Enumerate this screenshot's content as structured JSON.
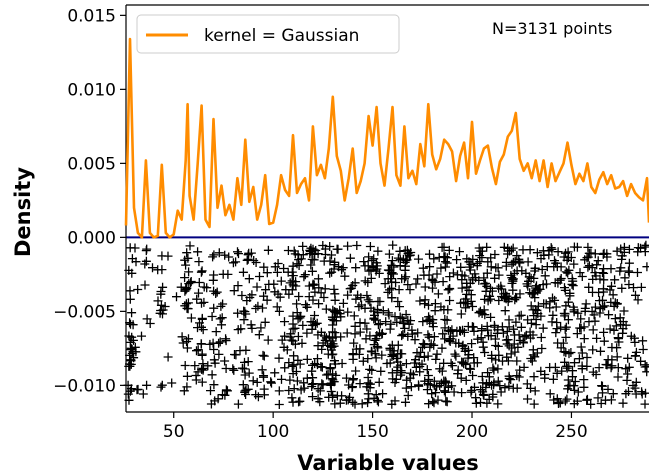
{
  "chart_data": {
    "type": "line",
    "title": "",
    "xlabel": "Variable values",
    "ylabel": "Density",
    "xlim": [
      26,
      289
    ],
    "ylim": [
      -0.0118,
      0.0157
    ],
    "xticks": [
      50,
      100,
      150,
      200,
      250
    ],
    "yticks": [
      -0.01,
      -0.005,
      0.0,
      0.005,
      0.01,
      0.015
    ],
    "xtick_labels": [
      "50",
      "100",
      "150",
      "200",
      "250"
    ],
    "ytick_labels": [
      "−0.010",
      "−0.005",
      "0.000",
      "0.005",
      "0.010",
      "0.015"
    ],
    "grid": false,
    "legend_position": "top-left",
    "annotation": "N=3131 points",
    "series": [
      {
        "name": "kernel = Gaussian",
        "color": "#ff8c00",
        "x": [
          26,
          28,
          30,
          32,
          34,
          36,
          38,
          40,
          42,
          44,
          46,
          48,
          50,
          52,
          54,
          56,
          57,
          58,
          60,
          62,
          64,
          66,
          68,
          70,
          72,
          74,
          76,
          78,
          80,
          82,
          84,
          86,
          88,
          90,
          92,
          94,
          96,
          98,
          100,
          102,
          104,
          106,
          108,
          110,
          112,
          114,
          116,
          118,
          120,
          122,
          124,
          126,
          128,
          130,
          132,
          134,
          136,
          138,
          140,
          142,
          144,
          146,
          148,
          150,
          152,
          154,
          156,
          158,
          160,
          162,
          164,
          166,
          168,
          170,
          172,
          174,
          176,
          178,
          180,
          182,
          184,
          186,
          188,
          190,
          192,
          194,
          196,
          198,
          200,
          202,
          204,
          206,
          208,
          210,
          212,
          214,
          216,
          218,
          220,
          222,
          224,
          226,
          228,
          230,
          232,
          234,
          236,
          238,
          240,
          242,
          244,
          246,
          248,
          250,
          252,
          254,
          256,
          258,
          260,
          262,
          264,
          266,
          268,
          270,
          272,
          274,
          276,
          278,
          280,
          282,
          284,
          286,
          288,
          289
        ],
        "values": [
          0.0008,
          0.0134,
          0.002,
          0.0003,
          0.0,
          0.0052,
          0.0003,
          0.0,
          0.0001,
          0.0049,
          0.0003,
          0.0,
          0.0002,
          0.0018,
          0.0012,
          0.0052,
          0.009,
          0.0028,
          0.0012,
          0.0049,
          0.0089,
          0.0012,
          0.0007,
          0.008,
          0.002,
          0.0035,
          0.0015,
          0.0022,
          0.0012,
          0.004,
          0.0022,
          0.0066,
          0.0024,
          0.0034,
          0.0012,
          0.0022,
          0.0042,
          0.0009,
          0.001,
          0.0022,
          0.0042,
          0.0032,
          0.0028,
          0.0069,
          0.003,
          0.0036,
          0.004,
          0.0025,
          0.0075,
          0.0042,
          0.0049,
          0.004,
          0.006,
          0.0095,
          0.0055,
          0.0045,
          0.0025,
          0.004,
          0.006,
          0.003,
          0.0038,
          0.005,
          0.0082,
          0.0062,
          0.0088,
          0.005,
          0.0035,
          0.006,
          0.0088,
          0.0042,
          0.0035,
          0.0075,
          0.004,
          0.0045,
          0.0036,
          0.0063,
          0.0048,
          0.009,
          0.0056,
          0.0046,
          0.0053,
          0.0066,
          0.0063,
          0.0058,
          0.0038,
          0.0055,
          0.0064,
          0.004,
          0.0078,
          0.0043,
          0.0052,
          0.006,
          0.0062,
          0.0047,
          0.0036,
          0.0051,
          0.0056,
          0.0068,
          0.0072,
          0.0084,
          0.0053,
          0.0045,
          0.005,
          0.004,
          0.0052,
          0.0038,
          0.0052,
          0.0034,
          0.005,
          0.0038,
          0.0044,
          0.005,
          0.0064,
          0.0049,
          0.0036,
          0.0043,
          0.0038,
          0.005,
          0.0034,
          0.003,
          0.0039,
          0.0044,
          0.0036,
          0.0042,
          0.0033,
          0.0034,
          0.0038,
          0.0028,
          0.0036,
          0.003,
          0.0027,
          0.0025,
          0.004,
          0.001
        ]
      }
    ],
    "rug": {
      "color": "#000000",
      "baseline_color": "#000080",
      "count": 3131,
      "y_range": [
        -0.0113,
        -0.0005
      ]
    }
  }
}
